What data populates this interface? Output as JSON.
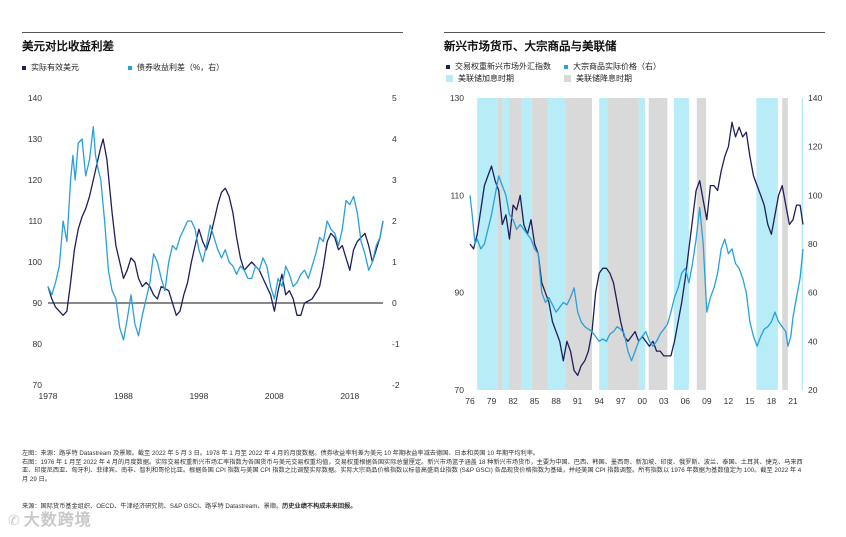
{
  "colors": {
    "navy": "#1f1f5c",
    "cyan": "#2aa0d8",
    "hike_band": "#b8ecf6",
    "cut_band": "#d9d9d9",
    "axis_text": "#333333"
  },
  "left_panel": {
    "title": "美元对比收益利差",
    "legend": [
      "实际有效美元",
      "债券收益利差（%，右）"
    ]
  },
  "right_panel": {
    "title": "新兴市场货币、大宗商品与美联储",
    "legend": [
      "交易权重新兴市场外汇指数",
      "大宗商品实际价格（右）",
      "美联储加息时期",
      "美联储降息时期"
    ]
  },
  "notes": {
    "line1": "左图：来源：路孚特 Datastream 及景顺。截至 2022 年 5 月 3 日。1978 年 1 月至 2022 年 4 月的月度数据。债券收益率利差为美元 10 年期收益率减去德国、日本和英国 10 年期平均利率。",
    "line2": "右图：1976 年 1 月至 2022 年 4 月的月度数据。实际交易权重新兴市场汇率指数为各国货币与美元交易权重均值，交易权重根据各国实际总量厘定。新兴市场篮子涵盖 18 种新兴市场货币，主要为中国、巴西、韩国、墨西哥、新加坡、印度、俄罗斯、波兰、泰国、土耳其、捷克、马来西",
    "line3": "亚、印度尼西亚、匈牙利、菲律宾、南非、智利和哥伦比亚。根据各国 CPI 指数与美国 CPI 指数之比调整实际数据。实际大宗商品价格指数以标普高盛商业指数 (S&P GSCI) 各品现货价格指数为基础，并经美国 CPI 指数调整。所有指数以 1976 年数据为基数值定为 100。截至 2022 年 4",
    "line4": "月 29 日。",
    "source_prefix": "来源：国际货币基金组织、OECD、牛津经济研究院、S&P GSCI、路孚特 Datastream、景顺。",
    "source_bold": "历史业绩不构成未来回报。"
  },
  "watermark": "大数跨境",
  "chart_data": [
    {
      "type": "line",
      "title": "美元对比收益利差",
      "xlabel": "",
      "ylabel": "",
      "x_ticks": [
        1978,
        1988,
        1998,
        2008,
        2018
      ],
      "x_range": [
        1978,
        2022.4
      ],
      "left_axis": {
        "ylim": [
          70,
          140
        ],
        "ticks": [
          70,
          80,
          90,
          100,
          110,
          120,
          130,
          140
        ]
      },
      "right_axis": {
        "ylim": [
          -2,
          5
        ],
        "ticks": [
          -2,
          -1,
          0,
          1,
          2,
          3,
          4,
          5
        ]
      },
      "zero_line_right": 0,
      "series": [
        {
          "name": "实际有效美元",
          "axis": "left",
          "color": "navy",
          "x": [
            1978,
            1978.5,
            1979,
            1979.5,
            1980,
            1980.5,
            1981,
            1981.5,
            1982,
            1982.5,
            1983,
            1983.5,
            1984,
            1984.5,
            1985,
            1985.3,
            1985.8,
            1986.5,
            1987,
            1987.5,
            1988,
            1988.5,
            1989,
            1989.5,
            1990,
            1990.5,
            1991,
            1991.5,
            1992,
            1992.5,
            1993,
            1994,
            1995,
            1995.5,
            1996,
            1996.5,
            1997,
            1997.5,
            1998,
            1998.5,
            1999,
            1999.5,
            2000,
            2000.5,
            2001,
            2001.5,
            2002,
            2002.5,
            2003,
            2003.5,
            2004,
            2005,
            2006,
            2006.5,
            2007,
            2007.5,
            2008,
            2008.5,
            2009,
            2009.5,
            2010,
            2010.5,
            2011,
            2011.5,
            2012,
            2013,
            2014,
            2014.5,
            2015,
            2015.5,
            2016,
            2016.5,
            2017,
            2017.5,
            2018,
            2018.5,
            2019,
            2019.5,
            2020,
            2020.5,
            2021,
            2021.5,
            2022,
            2022.4
          ],
          "values": [
            94,
            91,
            89,
            88,
            87,
            88,
            95,
            103,
            108,
            111,
            113,
            116,
            120,
            124,
            128,
            130,
            125,
            112,
            104,
            100,
            96,
            98,
            101,
            100,
            96,
            94,
            95,
            94,
            92,
            91,
            94,
            93,
            87,
            88,
            92,
            95,
            100,
            104,
            108,
            105,
            103,
            106,
            110,
            114,
            117,
            118,
            116,
            112,
            106,
            101,
            98,
            100,
            98,
            96,
            94,
            92,
            88,
            93,
            97,
            92,
            93,
            91,
            87,
            87,
            90,
            91,
            94,
            99,
            105,
            107,
            106,
            103,
            104,
            101,
            98,
            103,
            105,
            106,
            107,
            104,
            100,
            103,
            106,
            110
          ]
        },
        {
          "name": "债券收益利差（%，右）",
          "axis": "right",
          "color": "cyan",
          "x": [
            1978,
            1978.5,
            1979,
            1979.5,
            1980,
            1980.5,
            1981,
            1981.3,
            1981.6,
            1982,
            1982.5,
            1983,
            1983.5,
            1984,
            1984.3,
            1984.6,
            1985,
            1985.5,
            1986,
            1986.5,
            1987,
            1987.5,
            1988,
            1988.5,
            1989,
            1989.5,
            1990,
            1990.5,
            1991,
            1991.5,
            1992,
            1992.5,
            1993,
            1993.5,
            1994,
            1994.5,
            1995,
            1995.5,
            1996,
            1996.5,
            1997,
            1997.5,
            1998,
            1998.5,
            1999,
            1999.5,
            2000,
            2000.5,
            2001,
            2001.5,
            2002,
            2002.5,
            2003,
            2003.5,
            2004,
            2004.5,
            2005,
            2005.5,
            2006,
            2006.5,
            2007,
            2007.5,
            2008,
            2008.5,
            2009,
            2009.5,
            2010,
            2010.5,
            2011,
            2011.5,
            2012,
            2012.5,
            2013,
            2013.5,
            2014,
            2014.5,
            2015,
            2015.5,
            2016,
            2016.5,
            2017,
            2017.5,
            2018,
            2018.5,
            2019,
            2019.5,
            2020,
            2020.5,
            2021,
            2021.5,
            2022,
            2022.4
          ],
          "values": [
            0.4,
            0.2,
            0.5,
            0.9,
            2.0,
            1.5,
            3.0,
            3.6,
            3.0,
            3.9,
            4.0,
            3.1,
            3.5,
            4.3,
            3.6,
            3.3,
            3.0,
            2.0,
            0.8,
            0.3,
            0.1,
            -0.6,
            -0.9,
            -0.4,
            0.2,
            -0.5,
            -0.8,
            -0.3,
            0.1,
            0.5,
            1.2,
            1.0,
            0.6,
            0.3,
            1.0,
            1.4,
            1.3,
            1.6,
            1.8,
            2.0,
            2.0,
            1.8,
            1.3,
            1.0,
            1.4,
            1.9,
            1.6,
            1.3,
            1.1,
            1.3,
            1.0,
            0.9,
            0.7,
            0.9,
            0.8,
            0.6,
            0.6,
            0.9,
            0.8,
            1.1,
            0.9,
            0.4,
            0.1,
            0.6,
            0.4,
            0.9,
            0.7,
            0.4,
            0.5,
            0.7,
            0.8,
            0.6,
            0.9,
            1.2,
            1.6,
            1.5,
            2.0,
            1.8,
            1.7,
            1.4,
            1.8,
            2.5,
            2.4,
            2.6,
            2.2,
            1.5,
            1.2,
            0.8,
            1.0,
            1.4,
            1.6,
            2.0
          ]
        }
      ]
    },
    {
      "type": "line",
      "title": "新兴市场货币、大宗商品与美联储",
      "xlabel": "",
      "ylabel": "",
      "x_tick_labels": [
        "76",
        "79",
        "82",
        "85",
        "88",
        "91",
        "94",
        "97",
        "00",
        "03",
        "06",
        "09",
        "12",
        "15",
        "18",
        "21"
      ],
      "x_tick_years": [
        1976,
        1979,
        1982,
        1985,
        1988,
        1991,
        1994,
        1997,
        2000,
        2003,
        2006,
        2009,
        2012,
        2015,
        2018,
        2021
      ],
      "x_range": [
        1976,
        2022.4
      ],
      "left_axis": {
        "ylim": [
          70,
          130
        ],
        "ticks": [
          70,
          90,
          110,
          130
        ]
      },
      "right_axis": {
        "ylim": [
          20,
          140
        ],
        "ticks": [
          20,
          40,
          60,
          80,
          100,
          120,
          140
        ]
      },
      "hike_periods": [
        [
          1977,
          1979.9
        ],
        [
          1980.5,
          1981.5
        ],
        [
          1983.2,
          1984.6
        ],
        [
          1986.8,
          1989.3
        ],
        [
          1994.0,
          1995.1
        ],
        [
          1999.5,
          2000.4
        ],
        [
          2004.4,
          2006.5
        ],
        [
          2015.9,
          2018.9
        ],
        [
          2022.2,
          2022.4
        ]
      ],
      "cut_periods": [
        [
          1979.9,
          1980.5
        ],
        [
          1981.5,
          1983.2
        ],
        [
          1984.6,
          1986.8
        ],
        [
          1989.3,
          1993.0
        ],
        [
          1995.1,
          1999.5
        ],
        [
          2000.9,
          2003.5
        ],
        [
          2007.6,
          2008.9
        ],
        [
          2019.5,
          2020.3
        ]
      ],
      "series": [
        {
          "name": "交易权重新兴市场外汇指数",
          "axis": "left",
          "color": "navy",
          "x": [
            1976,
            1976.5,
            1977,
            1977.5,
            1978,
            1978.5,
            1979,
            1979.5,
            1980,
            1980.5,
            1981,
            1981.5,
            1982,
            1982.5,
            1983,
            1983.5,
            1984,
            1984.5,
            1985,
            1985.5,
            1986,
            1986.5,
            1987,
            1987.5,
            1988,
            1988.5,
            1989,
            1989.5,
            1990,
            1990.5,
            1991,
            1991.5,
            1992,
            1992.5,
            1993,
            1993.5,
            1994,
            1994.5,
            1995,
            1995.5,
            1996,
            1996.5,
            1997,
            1997.5,
            1998,
            1998.5,
            1999,
            1999.5,
            2000,
            2000.5,
            2001,
            2001.5,
            2002,
            2002.5,
            2003,
            2003.5,
            2004,
            2004.5,
            2005,
            2005.5,
            2006,
            2006.5,
            2007,
            2007.5,
            2008,
            2008.5,
            2009,
            2009.5,
            2010,
            2010.5,
            2011,
            2011.5,
            2012,
            2012.5,
            2013,
            2013.5,
            2014,
            2014.5,
            2015,
            2015.5,
            2016,
            2016.5,
            2017,
            2017.5,
            2018,
            2018.5,
            2019,
            2019.5,
            2020,
            2020.5,
            2021,
            2021.5,
            2022,
            2022.4
          ],
          "values": [
            100,
            99,
            102,
            107,
            112,
            114,
            116,
            113,
            111,
            104,
            106,
            101,
            108,
            107,
            110,
            104,
            102,
            105,
            100,
            98,
            92,
            90,
            88,
            84,
            82,
            80,
            76,
            80,
            78,
            74,
            73,
            75,
            76,
            78,
            82,
            90,
            94,
            95,
            95,
            94,
            92,
            88,
            84,
            81,
            80,
            81,
            82,
            80,
            81,
            80,
            79,
            80,
            78,
            78,
            77,
            77,
            77,
            80,
            84,
            88,
            93,
            99,
            105,
            111,
            113,
            109,
            105,
            112,
            112,
            111,
            115,
            118,
            120,
            125,
            122,
            124,
            122,
            123,
            118,
            114,
            112,
            110,
            108,
            104,
            102,
            106,
            110,
            112,
            108,
            104,
            105,
            108,
            108,
            104
          ]
        },
        {
          "name": "大宗商品实际价格（右）",
          "axis": "right",
          "color": "cyan",
          "x": [
            1976,
            1976.3,
            1976.7,
            1977,
            1977.5,
            1978,
            1978.5,
            1979,
            1979.5,
            1980,
            1980.5,
            1981,
            1981.5,
            1982,
            1982.5,
            1983,
            1983.5,
            1984,
            1984.5,
            1985,
            1985.5,
            1986,
            1986.5,
            1987,
            1987.5,
            1988,
            1988.5,
            1989,
            1989.5,
            1990,
            1990.5,
            1991,
            1991.5,
            1992,
            1992.5,
            1993,
            1993.5,
            1994,
            1994.5,
            1995,
            1995.5,
            1996,
            1996.5,
            1997,
            1997.5,
            1998,
            1998.5,
            1999,
            1999.5,
            2000,
            2000.5,
            2001,
            2001.5,
            2002,
            2002.5,
            2003,
            2003.5,
            2004,
            2004.5,
            2005,
            2005.5,
            2006,
            2006.5,
            2007,
            2007.5,
            2008,
            2008.5,
            2009,
            2009.5,
            2010,
            2010.5,
            2011,
            2011.5,
            2012,
            2012.5,
            2013,
            2013.5,
            2014,
            2014.5,
            2015,
            2015.5,
            2016,
            2016.5,
            2017,
            2017.5,
            2018,
            2018.5,
            2019,
            2019.5,
            2020,
            2020.3,
            2020.7,
            2021,
            2021.5,
            2022,
            2022.4
          ],
          "values": [
            100,
            92,
            80,
            82,
            78,
            80,
            86,
            92,
            100,
            108,
            104,
            100,
            92,
            90,
            86,
            88,
            86,
            84,
            82,
            78,
            76,
            60,
            56,
            58,
            55,
            52,
            54,
            56,
            55,
            58,
            62,
            52,
            48,
            46,
            45,
            44,
            42,
            40,
            41,
            40,
            43,
            44,
            46,
            45,
            43,
            36,
            32,
            36,
            40,
            42,
            44,
            40,
            38,
            40,
            43,
            45,
            47,
            52,
            58,
            62,
            68,
            70,
            64,
            72,
            82,
            95,
            80,
            52,
            58,
            62,
            68,
            78,
            82,
            76,
            78,
            72,
            70,
            66,
            60,
            48,
            42,
            38,
            42,
            45,
            46,
            48,
            52,
            48,
            46,
            44,
            38,
            42,
            50,
            58,
            66,
            78
          ]
        }
      ]
    }
  ]
}
